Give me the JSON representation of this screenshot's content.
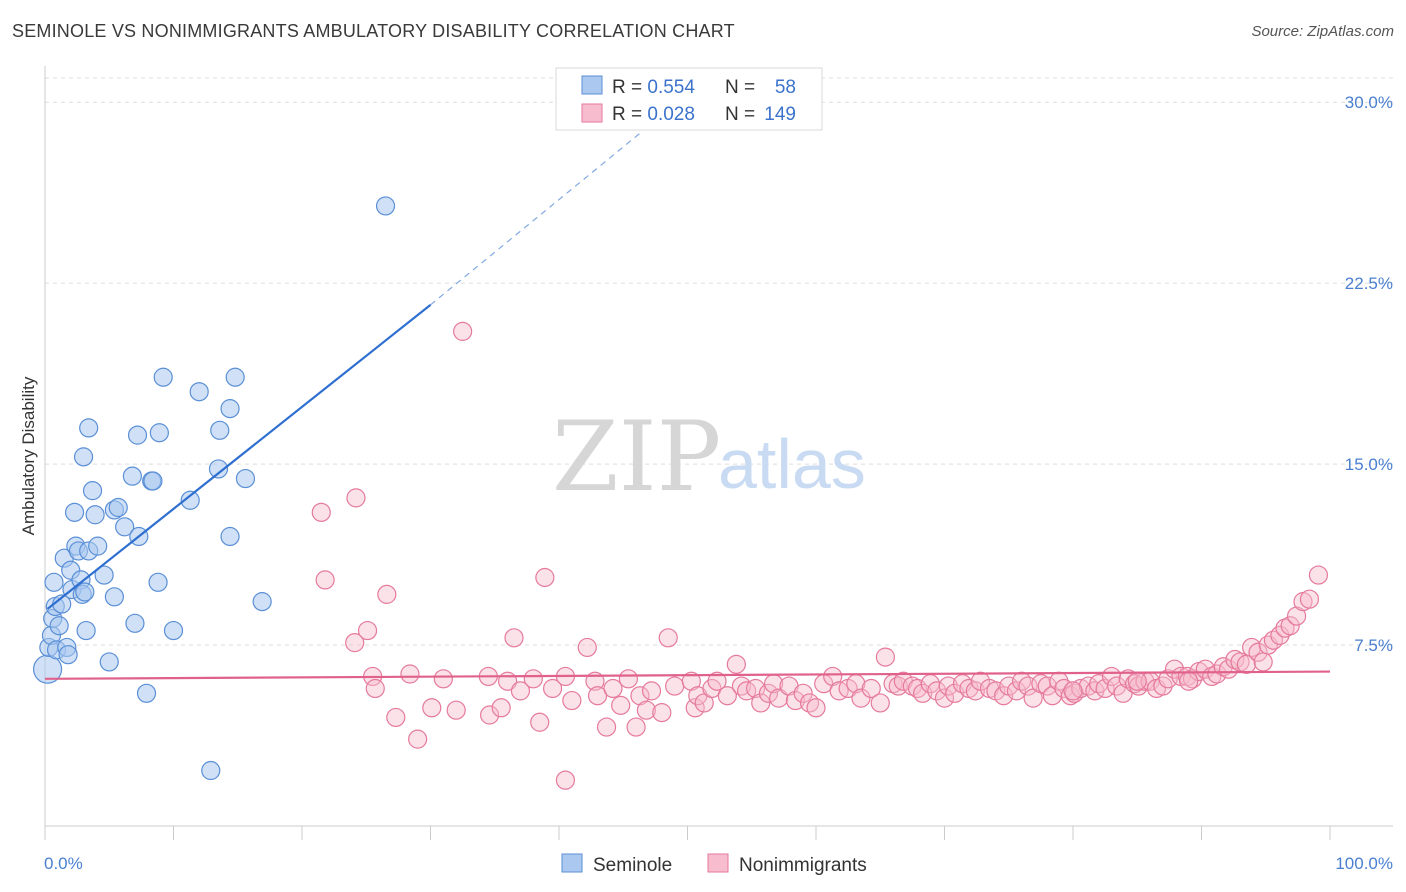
{
  "title": "SEMINOLE VS NONIMMIGRANTS AMBULATORY DISABILITY CORRELATION CHART",
  "source": "Source: ZipAtlas.com",
  "watermark": {
    "zip": "ZIP",
    "atlas": "atlas"
  },
  "colors": {
    "seminole_fill": "#aac8f0",
    "seminole_stroke": "#5a8fd6",
    "seminole_line": "#2e6fd0",
    "nonimm_fill": "#f7bccd",
    "nonimm_stroke": "#e57a9d",
    "nonimm_line": "#e0628c",
    "grid": "#dddddd",
    "tick_text": "#4a7fd0"
  },
  "legend": {
    "rows": [
      {
        "r_label": "R = ",
        "r_value": "0.554",
        "n_label": "N = ",
        "n_value": "58"
      },
      {
        "r_label": "R = ",
        "r_value": "0.028",
        "n_label": "N = ",
        "n_value": "149"
      }
    ]
  },
  "bottom_legend": [
    "Seminole",
    "Nonimmigrants"
  ],
  "chart_data": {
    "type": "scatter",
    "title": "SEMINOLE VS NONIMMIGRANTS AMBULATORY DISABILITY CORRELATION CHART",
    "ylabel": "Ambulatory Disability",
    "xlabel": "",
    "x_tick_labels": [
      "0.0%",
      "100.0%"
    ],
    "y_tick_labels": [
      "7.5%",
      "15.0%",
      "22.5%",
      "30.0%"
    ],
    "y_ticks": [
      7.5,
      15.0,
      22.5,
      30.0
    ],
    "xlim": [
      0,
      100
    ],
    "ylim": [
      0,
      31.5
    ],
    "grid": true,
    "legend_position": "top-center",
    "series": [
      {
        "name": "Seminole",
        "R": 0.554,
        "N": 58,
        "trend": {
          "x0": 0.2,
          "y0": 9.0,
          "x1": 30.0,
          "y1": 21.6,
          "dashed_to_x": 46.5,
          "dashed_to_y": 28.8
        },
        "points": [
          [
            0.2,
            6.5
          ],
          [
            0.3,
            7.4
          ],
          [
            0.5,
            7.9
          ],
          [
            0.6,
            8.6
          ],
          [
            0.7,
            10.1
          ],
          [
            0.8,
            9.1
          ],
          [
            0.9,
            7.3
          ],
          [
            1.1,
            8.3
          ],
          [
            1.3,
            9.2
          ],
          [
            1.5,
            11.1
          ],
          [
            1.7,
            7.4
          ],
          [
            1.8,
            7.1
          ],
          [
            2.0,
            10.6
          ],
          [
            2.1,
            9.8
          ],
          [
            2.3,
            13.0
          ],
          [
            2.4,
            11.6
          ],
          [
            2.6,
            11.4
          ],
          [
            2.8,
            10.2
          ],
          [
            2.9,
            9.6
          ],
          [
            3.1,
            9.7
          ],
          [
            3.0,
            15.3
          ],
          [
            3.2,
            8.1
          ],
          [
            3.4,
            11.4
          ],
          [
            3.4,
            16.5
          ],
          [
            3.7,
            13.9
          ],
          [
            3.9,
            12.9
          ],
          [
            4.1,
            11.6
          ],
          [
            4.6,
            10.4
          ],
          [
            5.0,
            6.8
          ],
          [
            5.4,
            9.5
          ],
          [
            5.4,
            13.1
          ],
          [
            5.7,
            13.2
          ],
          [
            6.2,
            12.4
          ],
          [
            6.8,
            14.5
          ],
          [
            7.0,
            8.4
          ],
          [
            7.2,
            16.2
          ],
          [
            7.3,
            12.0
          ],
          [
            7.9,
            5.5
          ],
          [
            8.3,
            14.3
          ],
          [
            8.4,
            14.3
          ],
          [
            8.8,
            10.1
          ],
          [
            8.9,
            16.3
          ],
          [
            9.2,
            18.6
          ],
          [
            10.0,
            8.1
          ],
          [
            11.3,
            13.5
          ],
          [
            12.0,
            18.0
          ],
          [
            12.9,
            2.3
          ],
          [
            13.5,
            14.8
          ],
          [
            13.6,
            16.4
          ],
          [
            14.4,
            17.3
          ],
          [
            14.8,
            18.6
          ],
          [
            14.4,
            12.0
          ],
          [
            15.6,
            14.4
          ],
          [
            16.9,
            9.3
          ],
          [
            26.5,
            25.7
          ]
        ]
      },
      {
        "name": "Nonimmigrants",
        "R": 0.028,
        "N": 149,
        "trend": {
          "x0": 0.0,
          "y0": 6.1,
          "x1": 100.0,
          "y1": 6.4
        },
        "points": [
          [
            21.5,
            13.0
          ],
          [
            21.8,
            10.2
          ],
          [
            24.1,
            7.6
          ],
          [
            24.2,
            13.6
          ],
          [
            25.1,
            8.1
          ],
          [
            25.5,
            6.2
          ],
          [
            25.7,
            5.7
          ],
          [
            26.6,
            9.6
          ],
          [
            27.3,
            4.5
          ],
          [
            28.4,
            6.3
          ],
          [
            29.0,
            3.6
          ],
          [
            30.1,
            4.9
          ],
          [
            31.0,
            6.1
          ],
          [
            32.0,
            4.8
          ],
          [
            32.5,
            20.5
          ],
          [
            34.5,
            6.2
          ],
          [
            34.6,
            4.6
          ],
          [
            35.5,
            4.9
          ],
          [
            36.0,
            6.0
          ],
          [
            36.5,
            7.8
          ],
          [
            37.0,
            5.6
          ],
          [
            38.0,
            6.1
          ],
          [
            38.5,
            4.3
          ],
          [
            38.9,
            10.3
          ],
          [
            39.5,
            5.7
          ],
          [
            40.5,
            6.2
          ],
          [
            40.5,
            1.9
          ],
          [
            41.0,
            5.2
          ],
          [
            42.2,
            7.4
          ],
          [
            42.8,
            6.0
          ],
          [
            43.0,
            5.4
          ],
          [
            43.7,
            4.1
          ],
          [
            44.2,
            5.7
          ],
          [
            44.8,
            5.0
          ],
          [
            45.4,
            6.1
          ],
          [
            46.0,
            4.1
          ],
          [
            46.3,
            5.4
          ],
          [
            46.8,
            4.8
          ],
          [
            47.2,
            5.6
          ],
          [
            48.0,
            4.7
          ],
          [
            48.5,
            7.8
          ],
          [
            49.0,
            5.8
          ],
          [
            50.3,
            6.0
          ],
          [
            50.6,
            4.9
          ],
          [
            50.8,
            5.4
          ],
          [
            51.3,
            5.1
          ],
          [
            51.9,
            5.7
          ],
          [
            52.3,
            6.0
          ],
          [
            53.1,
            5.4
          ],
          [
            53.8,
            6.7
          ],
          [
            54.2,
            5.8
          ],
          [
            54.6,
            5.6
          ],
          [
            55.3,
            5.7
          ],
          [
            55.7,
            5.1
          ],
          [
            56.3,
            5.5
          ],
          [
            56.7,
            5.9
          ],
          [
            57.1,
            5.3
          ],
          [
            57.9,
            5.8
          ],
          [
            58.4,
            5.2
          ],
          [
            59.0,
            5.5
          ],
          [
            59.5,
            5.1
          ],
          [
            60.0,
            4.9
          ],
          [
            60.6,
            5.9
          ],
          [
            61.3,
            6.2
          ],
          [
            61.8,
            5.6
          ],
          [
            62.5,
            5.7
          ],
          [
            63.1,
            5.9
          ],
          [
            63.5,
            5.3
          ],
          [
            64.3,
            5.7
          ],
          [
            65.0,
            5.1
          ],
          [
            65.4,
            7.0
          ],
          [
            66.0,
            5.9
          ],
          [
            66.4,
            5.8
          ],
          [
            66.8,
            6.0
          ],
          [
            67.5,
            5.8
          ],
          [
            67.9,
            5.7
          ],
          [
            68.3,
            5.5
          ],
          [
            68.9,
            5.9
          ],
          [
            69.4,
            5.6
          ],
          [
            70.0,
            5.3
          ],
          [
            70.3,
            5.8
          ],
          [
            70.8,
            5.5
          ],
          [
            71.4,
            5.9
          ],
          [
            71.9,
            5.7
          ],
          [
            72.4,
            5.6
          ],
          [
            72.8,
            6.0
          ],
          [
            73.5,
            5.7
          ],
          [
            74.0,
            5.6
          ],
          [
            74.6,
            5.4
          ],
          [
            75.0,
            5.8
          ],
          [
            75.6,
            5.6
          ],
          [
            76.0,
            6.0
          ],
          [
            76.5,
            5.8
          ],
          [
            76.9,
            5.3
          ],
          [
            77.5,
            5.9
          ],
          [
            78.0,
            5.8
          ],
          [
            78.4,
            5.4
          ],
          [
            78.9,
            6.0
          ],
          [
            79.3,
            5.7
          ],
          [
            79.8,
            5.4
          ],
          [
            80.1,
            5.5
          ],
          [
            80.6,
            5.7
          ],
          [
            81.2,
            5.8
          ],
          [
            81.7,
            5.6
          ],
          [
            82.0,
            5.9
          ],
          [
            82.5,
            5.7
          ],
          [
            83.0,
            6.2
          ],
          [
            83.4,
            5.8
          ],
          [
            83.9,
            5.5
          ],
          [
            84.3,
            6.1
          ],
          [
            84.8,
            5.9
          ],
          [
            85.1,
            5.8
          ],
          [
            85.6,
            6.0
          ],
          [
            86.0,
            6.0
          ],
          [
            86.5,
            5.7
          ],
          [
            87.0,
            5.8
          ],
          [
            87.4,
            6.1
          ],
          [
            87.9,
            6.5
          ],
          [
            88.4,
            6.2
          ],
          [
            88.9,
            6.2
          ],
          [
            89.3,
            6.1
          ],
          [
            89.8,
            6.4
          ],
          [
            90.3,
            6.5
          ],
          [
            90.8,
            6.2
          ],
          [
            91.2,
            6.3
          ],
          [
            91.7,
            6.6
          ],
          [
            92.1,
            6.5
          ],
          [
            92.6,
            6.9
          ],
          [
            93.0,
            6.8
          ],
          [
            93.5,
            6.7
          ],
          [
            93.9,
            7.4
          ],
          [
            94.4,
            7.2
          ],
          [
            94.8,
            6.8
          ],
          [
            95.2,
            7.5
          ],
          [
            95.6,
            7.7
          ],
          [
            96.1,
            7.9
          ],
          [
            96.5,
            8.2
          ],
          [
            96.9,
            8.3
          ],
          [
            97.4,
            8.7
          ],
          [
            97.9,
            9.3
          ],
          [
            98.4,
            9.4
          ],
          [
            99.1,
            10.4
          ],
          [
            89.0,
            6.0
          ],
          [
            85.0,
            6.0
          ],
          [
            80.0,
            5.6
          ]
        ]
      }
    ]
  }
}
